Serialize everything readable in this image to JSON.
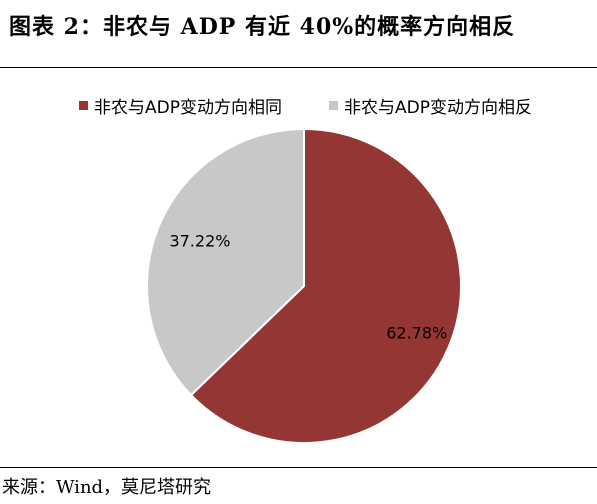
{
  "header": {
    "title": "图表 2：非农与 ADP 有近 40%的概率方向相反"
  },
  "chart_data": {
    "type": "pie",
    "title": "图表 2：非农与 ADP 有近 40%的概率方向相反",
    "legend_position": "top",
    "start_angle": "top, clockwise",
    "slices": [
      {
        "label": "非农与ADP变动方向相同",
        "value": 62.78,
        "data_label": "62.78%",
        "color": "#943634"
      },
      {
        "label": "非农与ADP变动方向相反",
        "value": 37.22,
        "data_label": "37.22%",
        "color": "#c8c8c8"
      }
    ]
  },
  "footer": {
    "source": "来源：Wind，莫尼塔研究"
  }
}
